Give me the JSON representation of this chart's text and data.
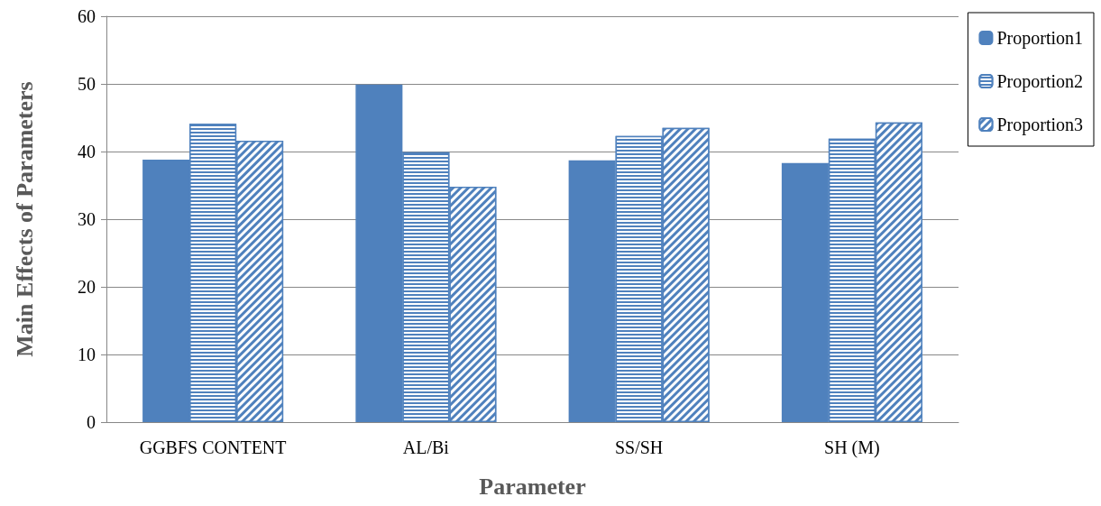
{
  "chart_data": {
    "type": "bar",
    "xlabel": "Parameter",
    "ylabel": "Main Effects of Parameters",
    "categories": [
      "GGBFS CONTENT",
      "AL/Bi",
      "SS/SH",
      "SH (M)"
    ],
    "series": [
      {
        "name": "Proportion1",
        "color": "#4f81bd",
        "values": [
          38.8,
          49.9,
          38.7,
          38.3
        ]
      },
      {
        "name": "Proportion2",
        "color": "#4f81bd",
        "values": [
          44.1,
          39.9,
          42.3,
          41.9
        ]
      },
      {
        "name": "Proportion3",
        "color": "#4f81bd",
        "values": [
          41.6,
          34.8,
          43.5,
          44.3
        ]
      }
    ],
    "ylim": [
      0,
      60
    ],
    "yticks": [
      0,
      10,
      20,
      30,
      40,
      50,
      60
    ],
    "grid": "y",
    "legend": "top right"
  }
}
